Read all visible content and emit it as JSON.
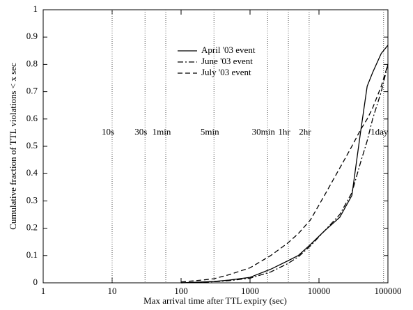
{
  "chart_data": {
    "type": "line",
    "xlabel": "Max arrival time after TTL expiry (sec)",
    "ylabel": "Cumulative fraction of TTL violations < x sec",
    "x": [
      100,
      200,
      300,
      500,
      1000,
      2000,
      3500,
      5000,
      7500,
      12000,
      20000,
      30000,
      40000,
      50000,
      60000,
      80000,
      100000
    ],
    "series": [
      {
        "name": "April '03 event",
        "color": "#000000",
        "dash": "solid",
        "values": [
          0,
          0.003,
          0.005,
          0.01,
          0.02,
          0.05,
          0.08,
          0.1,
          0.14,
          0.19,
          0.24,
          0.32,
          0.55,
          0.72,
          0.77,
          0.84,
          0.87
        ]
      },
      {
        "name": "June '03 event",
        "color": "#000000",
        "dash": "dashdot",
        "values": [
          0,
          0.002,
          0.004,
          0.008,
          0.017,
          0.04,
          0.07,
          0.095,
          0.135,
          0.19,
          0.25,
          0.33,
          0.44,
          0.52,
          0.6,
          0.7,
          0.8
        ]
      },
      {
        "name": "July '03 event",
        "color": "#000000",
        "dash": "dashed",
        "values": [
          0.003,
          0.01,
          0.015,
          0.03,
          0.055,
          0.1,
          0.145,
          0.18,
          0.23,
          0.32,
          0.42,
          0.5,
          0.56,
          0.6,
          0.64,
          0.72,
          0.8
        ]
      }
    ],
    "xscale": "log",
    "xlim": [
      1,
      100000
    ],
    "xticks": [
      1,
      10,
      100,
      1000,
      10000,
      100000
    ],
    "ylim": [
      0,
      1
    ],
    "yticks": [
      0,
      0.1,
      0.2,
      0.3,
      0.4,
      0.5,
      0.6,
      0.7,
      0.8,
      0.9,
      1
    ],
    "reference_lines": [
      {
        "x": 10,
        "label": "10s"
      },
      {
        "x": 30,
        "label": "30s"
      },
      {
        "x": 60,
        "label": "1min"
      },
      {
        "x": 300,
        "label": "5min"
      },
      {
        "x": 1800,
        "label": "30min"
      },
      {
        "x": 3600,
        "label": "1hr"
      },
      {
        "x": 7200,
        "label": "2hr"
      },
      {
        "x": 86400,
        "label": "1day"
      }
    ],
    "legend": "upper center"
  }
}
